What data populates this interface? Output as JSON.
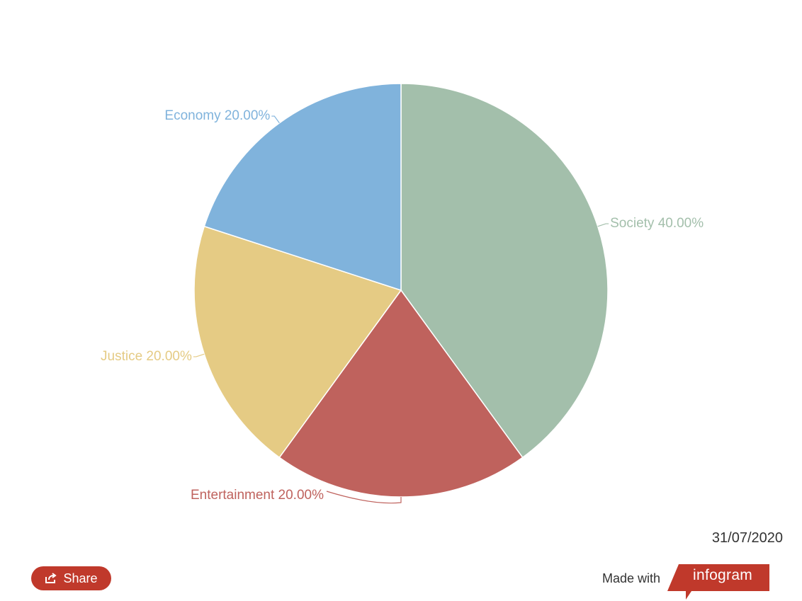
{
  "chart_data": {
    "type": "pie",
    "slices": [
      {
        "label": "Society",
        "value": 40.0,
        "display": "40.00%",
        "color": "#a3bfab"
      },
      {
        "label": "Entertainment",
        "value": 20.0,
        "display": "20.00%",
        "color": "#bf625d"
      },
      {
        "label": "Justice",
        "value": 20.0,
        "display": "20.00%",
        "color": "#e5cb84"
      },
      {
        "label": "Economy",
        "value": 20.0,
        "display": "20.00%",
        "color": "#80b3dc"
      }
    ],
    "start_angle": "12 o'clock",
    "direction": "clockwise",
    "label_style": "outside with leader lines",
    "legend": "none"
  },
  "footer": {
    "date": "31/07/2020",
    "share_label": "Share",
    "share_icon": "share-icon",
    "made_with_label": "Made with",
    "brand": "infogram",
    "brand_color": "#c0392b"
  }
}
